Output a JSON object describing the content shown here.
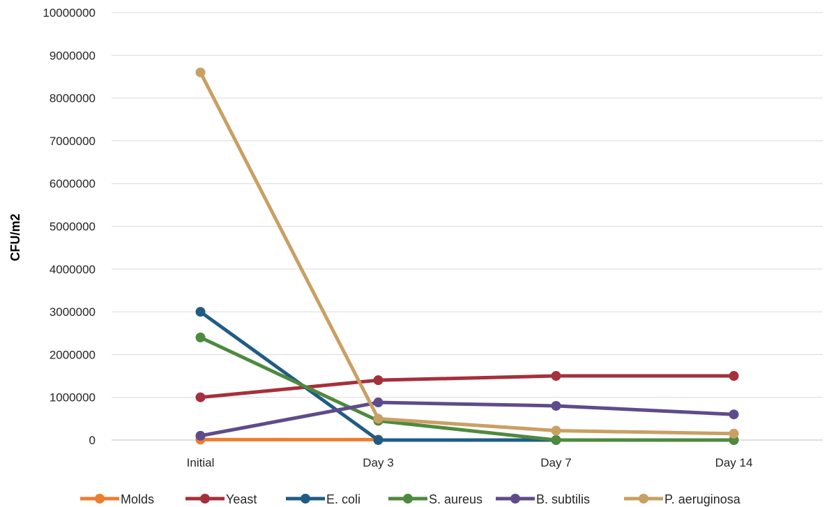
{
  "chart_data": {
    "type": "line",
    "title": "",
    "xlabel": "",
    "ylabel": "CFU/m2",
    "ylim": [
      0,
      10000000
    ],
    "yticks": [
      0,
      1000000,
      2000000,
      3000000,
      4000000,
      5000000,
      6000000,
      7000000,
      8000000,
      9000000,
      10000000
    ],
    "ytick_labels": [
      "0",
      "1000000",
      "2000000",
      "3000000",
      "4000000",
      "5000000",
      "6000000",
      "7000000",
      "8000000",
      "9000000",
      "10000000"
    ],
    "grid": true,
    "legend_position": "bottom",
    "categories": [
      "Initial",
      "Day 3",
      "Day 7",
      "Day 14"
    ],
    "series": [
      {
        "name": "Molds",
        "color": "#ED7D31",
        "values": [
          10000,
          10000,
          null,
          null
        ]
      },
      {
        "name": "Yeast",
        "color": "#A5303B",
        "values": [
          1000000,
          1400000,
          1500000,
          1500000
        ]
      },
      {
        "name": "E. coli",
        "color": "#1F5C85",
        "values": [
          3000000,
          0,
          0,
          0
        ]
      },
      {
        "name": "S. aureus",
        "color": "#4E8A3E",
        "values": [
          2400000,
          450000,
          0,
          0
        ]
      },
      {
        "name": "B. subtilis",
        "color": "#5F4B8B",
        "values": [
          100000,
          880000,
          800000,
          600000
        ]
      },
      {
        "name": "P. aeruginosa",
        "color": "#C9A063",
        "values": [
          8600000,
          500000,
          220000,
          150000
        ]
      }
    ]
  }
}
